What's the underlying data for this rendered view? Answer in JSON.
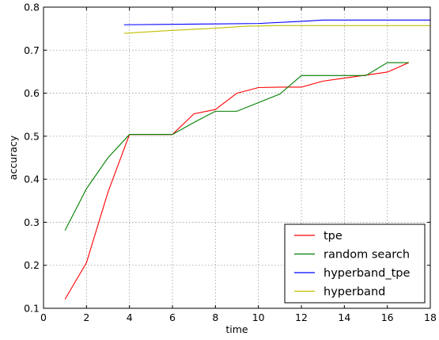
{
  "chart_data": {
    "type": "line",
    "title": "",
    "xlabel": "time",
    "ylabel": "accuracy",
    "xlim": [
      0,
      18
    ],
    "ylim": [
      0.1,
      0.8
    ],
    "xticks": [
      0,
      2,
      4,
      6,
      8,
      10,
      12,
      14,
      16,
      18
    ],
    "yticks": [
      0.1,
      0.2,
      0.3,
      0.4,
      0.5,
      0.6,
      0.7,
      0.8
    ],
    "grid": true,
    "legend_position": "lower-right",
    "series": [
      {
        "name": "tpe",
        "color": "#ff0000",
        "x": [
          1,
          2,
          3,
          4,
          5,
          6,
          7,
          8,
          9,
          10,
          11,
          12,
          13,
          14,
          15,
          16,
          17
        ],
        "y": [
          0.121,
          0.206,
          0.37,
          0.504,
          0.504,
          0.504,
          0.552,
          0.562,
          0.6,
          0.613,
          0.614,
          0.614,
          0.628,
          0.635,
          0.642,
          0.649,
          0.671
        ]
      },
      {
        "name": "random search",
        "color": "#007f00",
        "x": [
          1,
          2,
          3,
          4,
          5,
          6,
          7,
          8,
          9,
          10,
          11,
          12,
          13,
          14,
          15,
          16,
          17
        ],
        "y": [
          0.281,
          0.378,
          0.45,
          0.504,
          0.504,
          0.504,
          0.532,
          0.558,
          0.558,
          0.578,
          0.598,
          0.641,
          0.641,
          0.641,
          0.641,
          0.671,
          0.671
        ]
      },
      {
        "name": "hyperband_tpe",
        "color": "#0000ff",
        "x": [
          3.75,
          6,
          8,
          10,
          12,
          13,
          14,
          16,
          18
        ],
        "y": [
          0.759,
          0.76,
          0.761,
          0.762,
          0.767,
          0.77,
          0.77,
          0.77,
          0.77
        ]
      },
      {
        "name": "hyperband",
        "color": "#bfbf00",
        "x": [
          3.75,
          5,
          6,
          8,
          9.5,
          11,
          12,
          14,
          16,
          18
        ],
        "y": [
          0.739,
          0.743,
          0.746,
          0.751,
          0.756,
          0.757,
          0.757,
          0.757,
          0.757,
          0.757
        ]
      }
    ]
  }
}
